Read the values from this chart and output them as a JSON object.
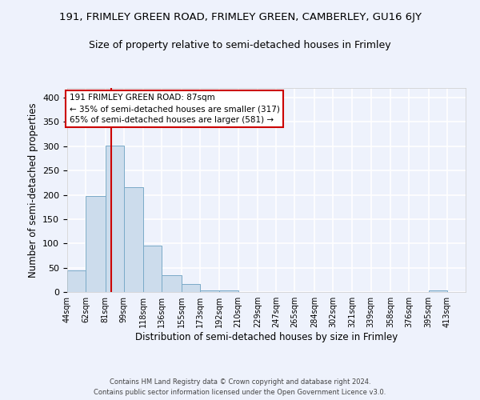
{
  "title_line1": "191, FRIMLEY GREEN ROAD, FRIMLEY GREEN, CAMBERLEY, GU16 6JY",
  "title_line2": "Size of property relative to semi-detached houses in Frimley",
  "xlabel": "Distribution of semi-detached houses by size in Frimley",
  "ylabel": "Number of semi-detached properties",
  "bin_labels": [
    "44sqm",
    "62sqm",
    "81sqm",
    "99sqm",
    "118sqm",
    "136sqm",
    "155sqm",
    "173sqm",
    "192sqm",
    "210sqm",
    "229sqm",
    "247sqm",
    "265sqm",
    "284sqm",
    "302sqm",
    "321sqm",
    "339sqm",
    "358sqm",
    "376sqm",
    "395sqm",
    "413sqm"
  ],
  "bin_edges": [
    44,
    62,
    81,
    99,
    118,
    136,
    155,
    173,
    192,
    210,
    229,
    247,
    265,
    284,
    302,
    321,
    339,
    358,
    376,
    395,
    413,
    431
  ],
  "bar_heights": [
    44,
    197,
    302,
    215,
    95,
    35,
    17,
    4,
    4,
    0,
    0,
    0,
    0,
    0,
    0,
    0,
    0,
    0,
    0,
    4,
    0
  ],
  "bar_color": "#ccdcec",
  "bar_edge_color": "#7aaac8",
  "property_size": 87,
  "red_line_color": "#cc0000",
  "annotation_text_line1": "191 FRIMLEY GREEN ROAD: 87sqm",
  "annotation_text_line2": "← 35% of semi-detached houses are smaller (317)",
  "annotation_text_line3": "65% of semi-detached houses are larger (581) →",
  "annotation_box_color": "#ffffff",
  "annotation_box_edge": "#cc0000",
  "ylim": [
    0,
    420
  ],
  "background_color": "#eef2fc",
  "grid_color": "#ffffff",
  "footer_text": "Contains HM Land Registry data © Crown copyright and database right 2024.\nContains public sector information licensed under the Open Government Licence v3.0."
}
